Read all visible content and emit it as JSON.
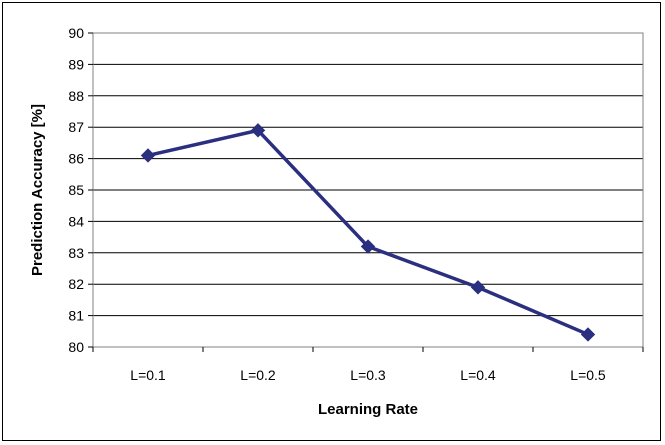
{
  "chart_data": {
    "type": "line",
    "categories": [
      "L=0.1",
      "L=0.2",
      "L=0.3",
      "L=0.4",
      "L=0.5"
    ],
    "series": [
      {
        "values": [
          86.1,
          86.9,
          83.2,
          81.9,
          80.4
        ]
      }
    ],
    "xlabel": "Learning Rate",
    "ylabel": "Prediction Accuracy [%]",
    "ylim": [
      80,
      90
    ],
    "yticks": [
      "80",
      "81",
      "82",
      "83",
      "84",
      "85",
      "86",
      "87",
      "88",
      "89",
      "90"
    ],
    "grid": true,
    "line_color": "#2b2f7f",
    "marker": "diamond"
  }
}
